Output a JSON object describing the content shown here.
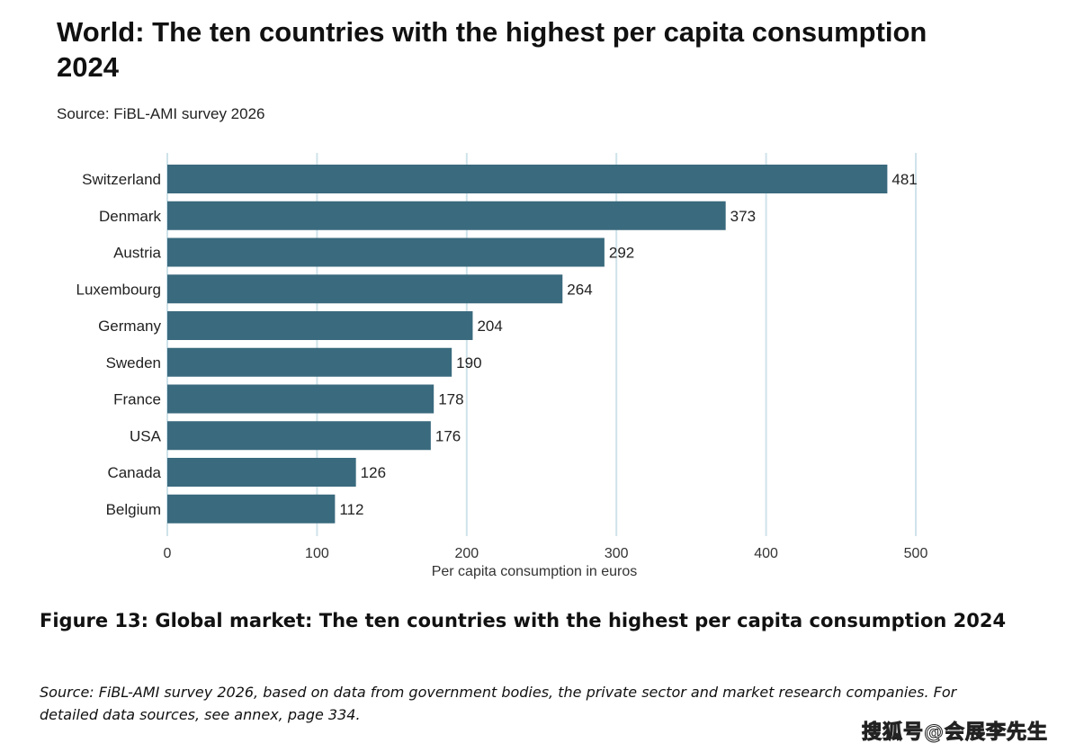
{
  "chart_data": {
    "type": "bar",
    "orientation": "horizontal",
    "title": "World: The ten countries with the highest per capita consumption 2024",
    "subtitle": "Source: FiBL-AMI survey 2026",
    "categories": [
      "Switzerland",
      "Denmark",
      "Austria",
      "Luxembourg",
      "Germany",
      "Sweden",
      "France",
      "USA",
      "Canada",
      "Belgium"
    ],
    "values": [
      481,
      373,
      292,
      264,
      204,
      190,
      178,
      176,
      126,
      112
    ],
    "xlabel": "Per capita consumption in euros",
    "ylabel": "",
    "xlim": [
      0,
      500
    ],
    "xticks": [
      0,
      100,
      200,
      300,
      400,
      500
    ],
    "grid": true,
    "bar_color": "#3a6a7e",
    "grid_color": "#cfe3ea"
  },
  "caption": {
    "title": "Figure 13: Global market: The ten countries with the highest per capita consumption 2024",
    "source": "Source: FiBL-AMI survey 2026, based on data from government bodies, the private sector and market research companies.  For detailed data sources, see annex, page 334."
  },
  "watermark": "搜狐号@会展李先生"
}
